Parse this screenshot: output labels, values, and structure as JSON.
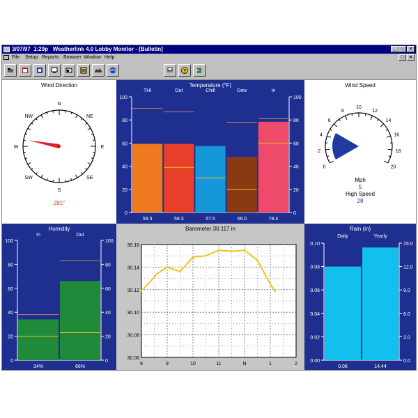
{
  "window": {
    "date": "3/07/97",
    "time": "1:29p",
    "app": "Weatherlink 4.0",
    "title": "Lobby Monitor - [Bulletin]",
    "min": "_",
    "max": "□",
    "close": "×"
  },
  "menu": [
    "File",
    "Setup",
    "Reports",
    "Browser",
    "Window",
    "Help"
  ],
  "toolbar_icons": [
    "open-icon",
    "calendar-icon",
    "station-icon",
    "monitor-icon",
    "bulletin-icon",
    "summary-icon",
    "noaa-icon",
    "noaa-logo-icon",
    "print-icon",
    "help-icon",
    "exit-icon"
  ],
  "colors": {
    "panel_blue": "#1f2f8f",
    "title_blue": "#000080",
    "thi": "#f07a1f",
    "out": "#e8402a",
    "chill": "#1597d9",
    "dew": "#8a3a10",
    "in": "#f04a6a",
    "humidity": "#1f8a3a",
    "rain": "#12c0f0",
    "baro_line": "#f0c020",
    "marker_high": "#c08060",
    "marker_low": "#f0c020"
  },
  "wind_direction": {
    "title": "Wind Direction",
    "labels": [
      "N",
      "NE",
      "E",
      "SE",
      "S",
      "SW",
      "W",
      "NW"
    ],
    "value": "281°",
    "degrees": 281
  },
  "temperature": {
    "title": "Temperature (°F)",
    "columns": [
      "THI",
      "Out",
      "Chill",
      "Dew",
      "In"
    ],
    "ticks": [
      "100",
      "80",
      "60",
      "40",
      "20",
      "0"
    ],
    "labels": [
      "59.3",
      "59.3",
      "57.5",
      "48.0",
      "78.4"
    ]
  },
  "wind_speed": {
    "title": "Wind Speed",
    "ticks": [
      "0",
      "2",
      "4",
      "6",
      "8",
      "10",
      "12",
      "14",
      "16",
      "18",
      "20"
    ],
    "mph_label": "Mph",
    "mph_value": "5",
    "high_label": "High Speed",
    "high_value": "28",
    "speed": 5,
    "high": 28
  },
  "humidity": {
    "title": "Humidity",
    "columns": [
      "In",
      "Out"
    ],
    "ticks": [
      "100",
      "80",
      "60",
      "40",
      "20",
      "0"
    ],
    "labels": [
      "34%",
      "66%"
    ]
  },
  "barometer": {
    "title": "Barometer 30.117 in",
    "y_ticks": [
      "30.16",
      "30.14",
      "30.12",
      "30.10",
      "30.08",
      "30.06"
    ],
    "x_ticks": [
      "8",
      "9",
      "10",
      "11",
      "N",
      "1",
      "2"
    ]
  },
  "rain": {
    "title": "Rain (in)",
    "columns": [
      "Daily",
      "Yearly"
    ],
    "left_ticks": [
      "0.10",
      "0.08",
      "0.06",
      "0.04",
      "0.02",
      "0.00"
    ],
    "right_ticks": [
      "15.0",
      "12.0",
      "9.0",
      "6.0",
      "3.0",
      "0.0"
    ],
    "labels": [
      "0.08",
      "14.44"
    ]
  },
  "chart_data": [
    {
      "type": "bar",
      "title": "Temperature (°F)",
      "categories": [
        "THI",
        "Out",
        "Chill",
        "Dew",
        "In"
      ],
      "values": [
        59.3,
        59.3,
        57.5,
        48.0,
        78.4
      ],
      "high_markers": [
        90,
        87,
        null,
        78,
        81
      ],
      "low_markers": [
        null,
        39,
        30,
        20,
        60
      ],
      "ylim": [
        0,
        100
      ]
    },
    {
      "type": "bar",
      "title": "Humidity",
      "categories": [
        "In",
        "Out"
      ],
      "values": [
        34,
        66
      ],
      "high_markers": [
        38,
        83
      ],
      "low_markers": [
        20,
        23
      ],
      "ylim": [
        0,
        100
      ]
    },
    {
      "type": "line",
      "title": "Barometer 30.117 in",
      "x": [
        7.95,
        8.3,
        8.6,
        9.0,
        9.5,
        10.0,
        10.5,
        11.0,
        11.5,
        12.0,
        12.5,
        13.0,
        13.2
      ],
      "y": [
        30.118,
        30.126,
        30.134,
        30.14,
        30.136,
        30.149,
        30.15,
        30.155,
        30.154,
        30.155,
        30.146,
        30.125,
        30.118
      ],
      "xlim": [
        8,
        14
      ],
      "ylim": [
        30.06,
        30.16
      ],
      "grid": true
    },
    {
      "type": "bar",
      "title": "Rain (in)",
      "categories": [
        "Daily",
        "Yearly"
      ],
      "values": [
        0.08,
        14.44
      ],
      "ylim_left": [
        0,
        0.1
      ],
      "ylim_right": [
        0,
        15
      ]
    }
  ]
}
